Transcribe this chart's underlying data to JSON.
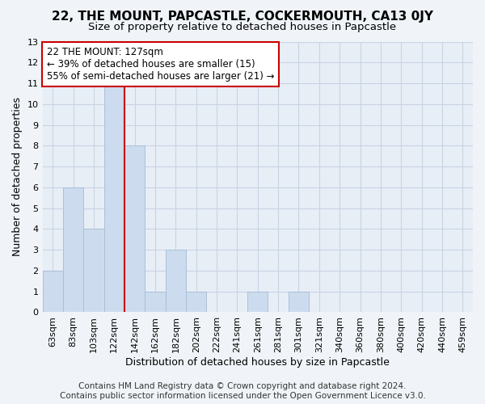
{
  "title": "22, THE MOUNT, PAPCASTLE, COCKERMOUTH, CA13 0JY",
  "subtitle": "Size of property relative to detached houses in Papcastle",
  "xlabel": "Distribution of detached houses by size in Papcastle",
  "ylabel": "Number of detached properties",
  "footer_line1": "Contains HM Land Registry data © Crown copyright and database right 2024.",
  "footer_line2": "Contains public sector information licensed under the Open Government Licence v3.0.",
  "categories": [
    "63sqm",
    "83sqm",
    "103sqm",
    "122sqm",
    "142sqm",
    "162sqm",
    "182sqm",
    "202sqm",
    "222sqm",
    "241sqm",
    "261sqm",
    "281sqm",
    "301sqm",
    "321sqm",
    "340sqm",
    "360sqm",
    "380sqm",
    "400sqm",
    "420sqm",
    "440sqm",
    "459sqm"
  ],
  "values": [
    2,
    6,
    4,
    11,
    8,
    1,
    3,
    1,
    0,
    0,
    1,
    0,
    1,
    0,
    0,
    0,
    0,
    0,
    0,
    0,
    0
  ],
  "bar_color": "#ccdcee",
  "bar_edge_color": "#aabfd8",
  "bar_width": 1.0,
  "property_line_x": 3.5,
  "annotation_text_line1": "22 THE MOUNT: 127sqm",
  "annotation_text_line2": "← 39% of detached houses are smaller (15)",
  "annotation_text_line3": "55% of semi-detached houses are larger (21) →",
  "annotation_box_color": "#ffffff",
  "annotation_box_edge": "#cc0000",
  "property_line_color": "#cc0000",
  "ylim": [
    0,
    13
  ],
  "yticks": [
    0,
    1,
    2,
    3,
    4,
    5,
    6,
    7,
    8,
    9,
    10,
    11,
    12,
    13
  ],
  "grid_color": "#c8d4e4",
  "background_color": "#f0f4f8",
  "plot_bg_color": "#e8eef6",
  "title_fontsize": 11,
  "subtitle_fontsize": 9.5,
  "axis_label_fontsize": 9,
  "tick_fontsize": 8,
  "annotation_fontsize": 8.5,
  "footer_fontsize": 7.5
}
